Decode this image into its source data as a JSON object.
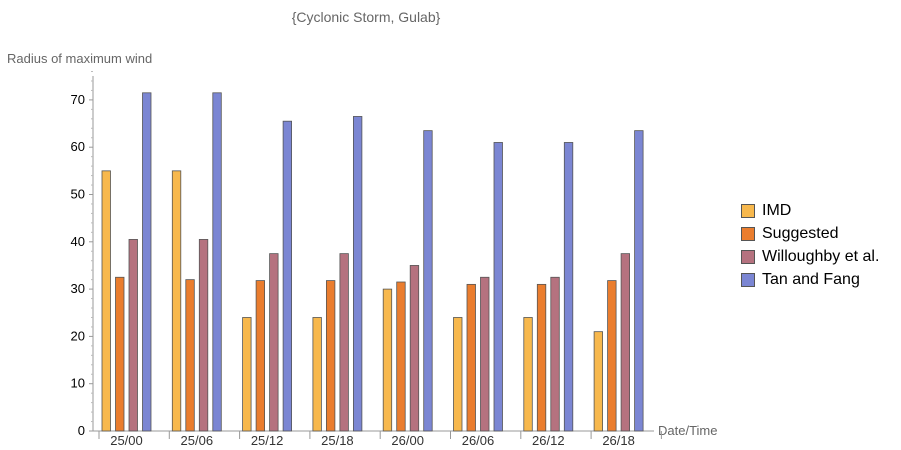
{
  "chart_data": {
    "type": "bar",
    "title": "{Cyclonic Storm, Gulab}",
    "ylabel": "Radius of maximum wind",
    "xlabel": "Date/Time",
    "ylim": [
      0,
      75
    ],
    "yticks": [
      0,
      10,
      20,
      30,
      40,
      50,
      60,
      70
    ],
    "categories": [
      "25/00",
      "25/06",
      "25/12",
      "25/18",
      "26/00",
      "26/06",
      "26/12",
      "26/18"
    ],
    "series": [
      {
        "name": "IMD",
        "color": "#f7b84d",
        "values": [
          55,
          55,
          24,
          24,
          30,
          24,
          24,
          21
        ]
      },
      {
        "name": "Suggested",
        "color": "#ea7d2e",
        "values": [
          32.5,
          32,
          31.8,
          31.8,
          31.5,
          31,
          31,
          31.8
        ]
      },
      {
        "name": "Willoughby et al.",
        "color": "#b5727f",
        "values": [
          40.5,
          40.5,
          37.5,
          37.5,
          35,
          32.5,
          32.5,
          37.5
        ]
      },
      {
        "name": "Tan and Fang",
        "color": "#7b86d3",
        "values": [
          71.5,
          71.5,
          65.5,
          66.5,
          63.5,
          61,
          61,
          63.5
        ]
      }
    ],
    "legend_position": "right"
  }
}
